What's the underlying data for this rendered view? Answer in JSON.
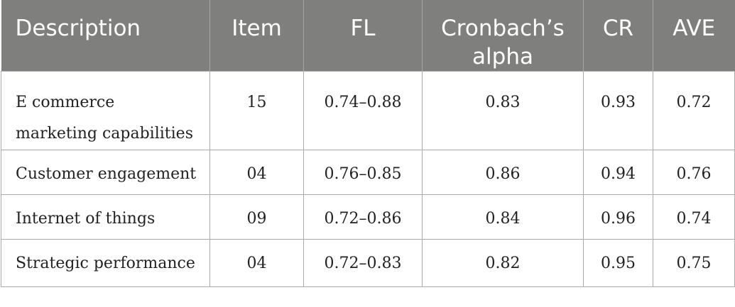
{
  "table": {
    "headers": [
      "Description",
      "Item",
      "FL",
      "Cronbach’s alpha",
      "CR",
      "AVE"
    ],
    "rows": [
      {
        "description": "E commerce marketing capabilities",
        "item": "15",
        "fl": "0.74–0.88",
        "alpha": "0.83",
        "cr": "0.93",
        "ave": "0.72"
      },
      {
        "description": "Customer engagement",
        "item": "04",
        "fl": "0.76–0.85",
        "alpha": "0.86",
        "cr": "0.94",
        "ave": "0.76"
      },
      {
        "description": "Internet of things",
        "item": "09",
        "fl": "0.72–0.86",
        "alpha": "0.84",
        "cr": "0.96",
        "ave": "0.74"
      },
      {
        "description": "Strategic performance",
        "item": "04",
        "fl": "0.72–0.83",
        "alpha": "0.82",
        "cr": "0.95",
        "ave": "0.75"
      }
    ]
  }
}
